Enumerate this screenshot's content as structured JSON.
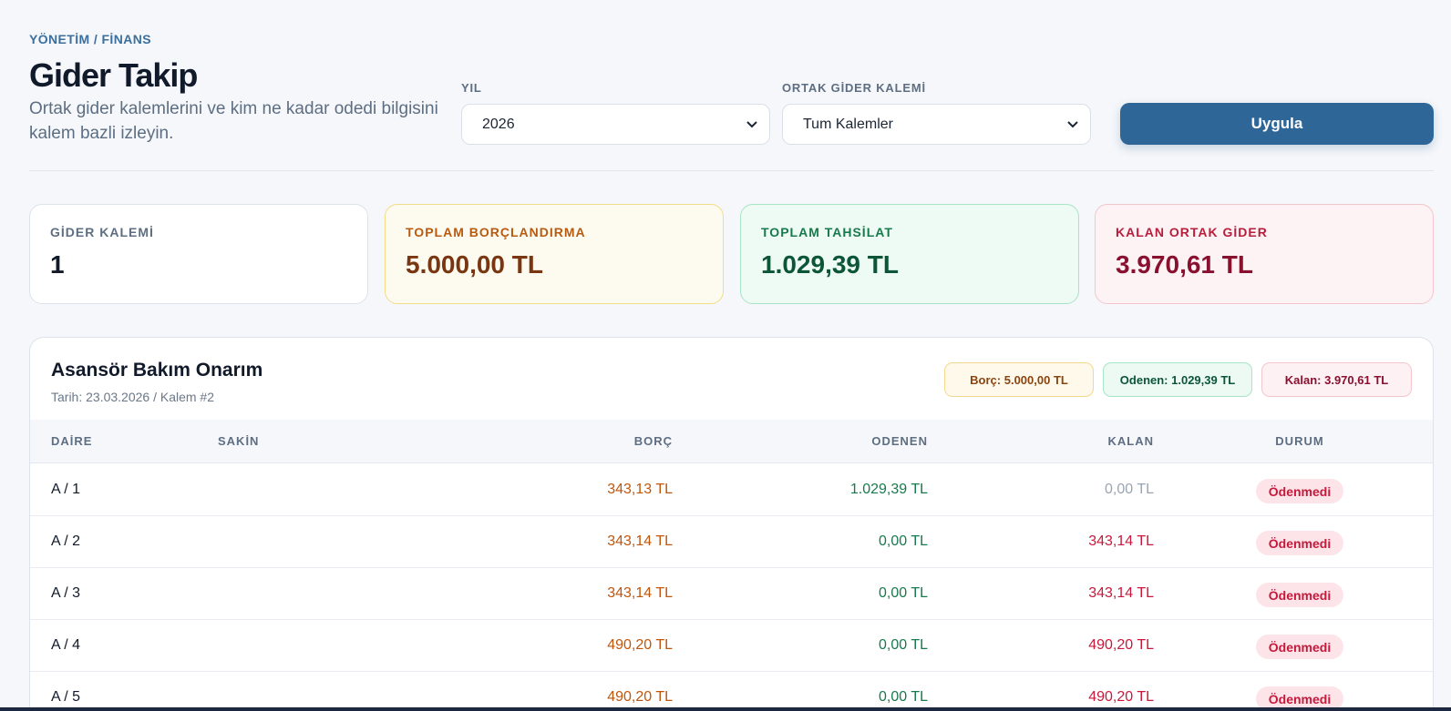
{
  "breadcrumb": "YÖNETİM / FİNANS",
  "title": "Gider Takip",
  "subtitle": "Ortak gider kalemlerini ve kim ne kadar odedi bilgisini kalem bazli izleyin.",
  "filters": {
    "year_label": "YIL",
    "year_value": "2026",
    "item_label": "ORTAK GİDER KALEMİ",
    "item_value": "Tum Kalemler",
    "apply_label": "Uygula"
  },
  "stats": [
    {
      "label": "GİDER KALEMİ",
      "value": "1"
    },
    {
      "label": "TOPLAM BORÇLANDIRMA",
      "value": "5.000,00 TL"
    },
    {
      "label": "TOPLAM TAHSİLAT",
      "value": "1.029,39 TL"
    },
    {
      "label": "KALAN ORTAK GİDER",
      "value": "3.970,61 TL"
    }
  ],
  "card": {
    "title": "Asansör Bakım Onarım",
    "subtitle": "Tarih: 23.03.2026 / Kalem #2",
    "chips": {
      "borc": "Borç: 5.000,00 TL",
      "odenen": "Odenen: 1.029,39 TL",
      "kalan": "Kalan: 3.970,61 TL"
    },
    "columns": [
      "DAİRE",
      "SAKİN",
      "BORÇ",
      "ODENEN",
      "KALAN",
      "DURUM"
    ],
    "rows": [
      {
        "daire": "A / 1",
        "sakin": "",
        "borc": "343,13 TL",
        "odenen": "1.029,39 TL",
        "kalan": "0,00 TL",
        "durum": "Ödenmedi"
      },
      {
        "daire": "A / 2",
        "sakin": "",
        "borc": "343,14 TL",
        "odenen": "0,00 TL",
        "kalan": "343,14 TL",
        "durum": "Ödenmedi"
      },
      {
        "daire": "A / 3",
        "sakin": "",
        "borc": "343,14 TL",
        "odenen": "0,00 TL",
        "kalan": "343,14 TL",
        "durum": "Ödenmedi"
      },
      {
        "daire": "A / 4",
        "sakin": "",
        "borc": "490,20 TL",
        "odenen": "0,00 TL",
        "kalan": "490,20 TL",
        "durum": "Ödenmedi"
      },
      {
        "daire": "A / 5",
        "sakin": "",
        "borc": "490,20 TL",
        "odenen": "0,00 TL",
        "kalan": "490,20 TL",
        "durum": "Ödenmedi"
      }
    ]
  },
  "colors": {
    "accent": "#2e6697",
    "borc": "#c0560c",
    "odenen": "#187a4c",
    "kalan": "#c8193c"
  }
}
